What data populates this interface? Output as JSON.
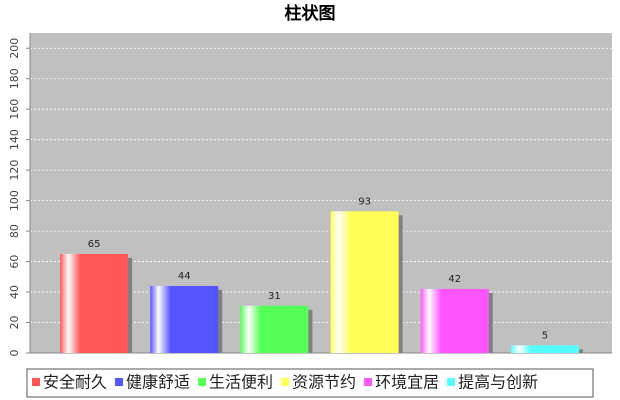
{
  "chart_data": {
    "type": "bar",
    "title": "柱状图",
    "categories": [
      "安全耐久",
      "健康舒适",
      "生活便利",
      "资源节约",
      "环境宜居",
      "提高与创新"
    ],
    "values": [
      65,
      44,
      31,
      93,
      42,
      5
    ],
    "colors": [
      "#ff5555",
      "#5555ff",
      "#55ff55",
      "#ffff55",
      "#ff55ff",
      "#55ffff"
    ],
    "ylim": [
      0,
      210
    ],
    "yticks": [
      0,
      20,
      40,
      60,
      80,
      100,
      120,
      140,
      160,
      180,
      200
    ],
    "grid": true,
    "legend": "bottom"
  }
}
